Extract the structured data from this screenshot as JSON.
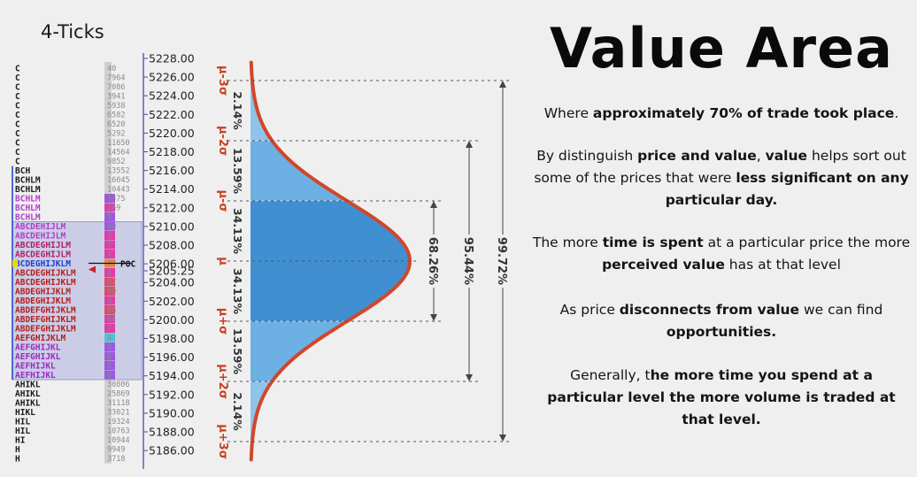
{
  "header": {
    "ticks_label": "4-Ticks",
    "title": "Value Area"
  },
  "paragraphs": [
    {
      "parts": [
        {
          "t": "Where ",
          "b": false
        },
        {
          "t": "approximately 70% of trade took place",
          "b": true
        },
        {
          "t": ".",
          "b": false
        }
      ]
    },
    {
      "parts": [
        {
          "t": "By distinguish ",
          "b": false
        },
        {
          "t": "price and value",
          "b": true
        },
        {
          "t": ", ",
          "b": false
        },
        {
          "t": "value",
          "b": true
        },
        {
          "t": " helps sort out some of the prices that were ",
          "b": false
        },
        {
          "t": "less significant on any particular day.",
          "b": true
        }
      ]
    },
    {
      "parts": [
        {
          "t": "The more ",
          "b": false
        },
        {
          "t": "time is spent",
          "b": true
        },
        {
          "t": " at a particular price the more ",
          "b": false
        },
        {
          "t": "perceived value",
          "b": true
        },
        {
          "t": " has at that level",
          "b": false
        }
      ]
    },
    {
      "parts": [
        {
          "t": "As price ",
          "b": false
        },
        {
          "t": "disconnects from value",
          "b": true
        },
        {
          "t": " we can find ",
          "b": false
        },
        {
          "t": "opportunities.",
          "b": true
        }
      ]
    },
    {
      "parts": [
        {
          "t": "Generally, t",
          "b": false
        },
        {
          "t": "he more time you spend at a particular level the more volume is traded at that level.",
          "b": true
        }
      ]
    }
  ],
  "colors": {
    "background": "#efefef",
    "curve": "#d2462a",
    "fill_outer": "#8ec3ea",
    "fill_mid": "#6db0e3",
    "fill_inner": "#3f8fd1",
    "value_area_box": "#b3b5e0",
    "poc_arrow": "#cc2222",
    "sigma_text": "#c8401f"
  },
  "tpo_profile": {
    "poc_label": "POC",
    "poc_price": "5205.25",
    "rows": [
      {
        "letters": "C",
        "color": "#1c1c1c",
        "volume": "40",
        "bar_color": "#c6c6c6"
      },
      {
        "letters": "C",
        "color": "#1c1c1c",
        "volume": "7964",
        "bar_color": "#c6c6c6"
      },
      {
        "letters": "C",
        "color": "#1c1c1c",
        "volume": "7086",
        "bar_color": "#c6c6c6"
      },
      {
        "letters": "C",
        "color": "#1c1c1c",
        "volume": "3941",
        "bar_color": "#c6c6c6"
      },
      {
        "letters": "C",
        "color": "#1c1c1c",
        "volume": "5938",
        "bar_color": "#c6c6c6"
      },
      {
        "letters": "C",
        "color": "#1c1c1c",
        "volume": "6582",
        "bar_color": "#c6c6c6"
      },
      {
        "letters": "C",
        "color": "#1c1c1c",
        "volume": "6520",
        "bar_color": "#c6c6c6"
      },
      {
        "letters": "C",
        "color": "#1c1c1c",
        "volume": "5292",
        "bar_color": "#c6c6c6"
      },
      {
        "letters": "C",
        "color": "#1c1c1c",
        "volume": "11650",
        "bar_color": "#c6c6c6"
      },
      {
        "letters": "C",
        "color": "#1c1c1c",
        "volume": "14564",
        "bar_color": "#c6c6c6"
      },
      {
        "letters": "C",
        "color": "#1c1c1c",
        "volume": "9852",
        "bar_color": "#c6c6c6"
      },
      {
        "letters": "BCH",
        "color": "#1c1c1c",
        "volume": "13552",
        "bar_color": "#c6c6c6"
      },
      {
        "letters": "BCHLM",
        "color": "#1c1c1c",
        "volume": "16045",
        "bar_color": "#c6c6c6"
      },
      {
        "letters": "BCHLM",
        "color": "#1c1c1c",
        "volume": "10443",
        "bar_color": "#c6c6c6"
      },
      {
        "letters": "BCHLM",
        "color": "#b33cc9",
        "volume": "3375",
        "bar_color": "#9b59e0"
      },
      {
        "letters": "BCHLM",
        "color": "#b33cc9",
        "volume": "269",
        "bar_color": "#e03ca8"
      },
      {
        "letters": "BCHLM",
        "color": "#b33cc9",
        "volume": "5",
        "bar_color": "#9b59e0"
      },
      {
        "letters": "ABCDEHIJLM",
        "color": "#b33cc9",
        "volume": "40",
        "bar_color": "#9b59e0"
      },
      {
        "letters": "ABCDEHIJLM",
        "color": "#b33cc9",
        "volume": "3",
        "bar_color": "#e03ca8"
      },
      {
        "letters": "ABCDEGHIJLM",
        "color": "#b0206a",
        "volume": "7",
        "bar_color": "#e03ca8"
      },
      {
        "letters": "ABCDEGHIJLM",
        "color": "#b0206a",
        "volume": "7",
        "bar_color": "#e03ca8"
      },
      {
        "letters": "BCDEGHIJKLM",
        "color": "#1a3fd0",
        "volume": "37",
        "bar_color": "#f08a3c"
      },
      {
        "letters": "ABCDEGHIJKLM",
        "color": "#b51f1f",
        "volume": "4",
        "bar_color": "#e03ca8"
      },
      {
        "letters": "ABCDEGHIJKLM",
        "color": "#b51f1f",
        "volume": "87",
        "bar_color": "#e04a6a"
      },
      {
        "letters": "ABDEGHIJKLM",
        "color": "#b51f1f",
        "volume": "90",
        "bar_color": "#e04a6a"
      },
      {
        "letters": "ABDEGHIJKLM",
        "color": "#b51f1f",
        "volume": "4",
        "bar_color": "#e03ca8"
      },
      {
        "letters": "ABDEFGHIJKLM",
        "color": "#b51f1f",
        "volume": "86",
        "bar_color": "#e04a6a"
      },
      {
        "letters": "ABDEFGHIJKLM",
        "color": "#b51f1f",
        "volume": "64",
        "bar_color": "#e03ca8"
      },
      {
        "letters": "ABDEFGHIJKLM",
        "color": "#b51f1f",
        "volume": "7",
        "bar_color": "#e03ca8"
      },
      {
        "letters": "AEFGHIJKLM",
        "color": "#b51f1f",
        "volume": "4",
        "bar_color": "#4fc3d6"
      },
      {
        "letters": "AEFGHIJKL",
        "color": "#9a2ac0",
        "volume": "3",
        "bar_color": "#9b59e0"
      },
      {
        "letters": "AEFGHIJKL",
        "color": "#9a2ac0",
        "volume": "6",
        "bar_color": "#9b59e0"
      },
      {
        "letters": "AEFHIJKL",
        "color": "#9a2ac0",
        "volume": "5",
        "bar_color": "#9b59e0"
      },
      {
        "letters": "AEFHIJKL",
        "color": "#9a2ac0",
        "volume": "0",
        "bar_color": "#9b59e0"
      },
      {
        "letters": "AHIKL",
        "color": "#1c1c1c",
        "volume": "30806",
        "bar_color": "#c6c6c6"
      },
      {
        "letters": "AHIKL",
        "color": "#1c1c1c",
        "volume": "25869",
        "bar_color": "#c6c6c6"
      },
      {
        "letters": "AHIKL",
        "color": "#1c1c1c",
        "volume": "31118",
        "bar_color": "#c6c6c6"
      },
      {
        "letters": "HIKL",
        "color": "#1c1c1c",
        "volume": "33021",
        "bar_color": "#c6c6c6"
      },
      {
        "letters": "HIL",
        "color": "#1c1c1c",
        "volume": "19324",
        "bar_color": "#c6c6c6"
      },
      {
        "letters": "HIL",
        "color": "#1c1c1c",
        "volume": "10763",
        "bar_color": "#c6c6c6"
      },
      {
        "letters": "HI",
        "color": "#1c1c1c",
        "volume": "10944",
        "bar_color": "#c6c6c6"
      },
      {
        "letters": "H",
        "color": "#1c1c1c",
        "volume": "9949",
        "bar_color": "#c6c6c6"
      },
      {
        "letters": "H",
        "color": "#1c1c1c",
        "volume": "3718",
        "bar_color": "#c6c6c6"
      }
    ]
  },
  "chart_data": {
    "type": "area",
    "price_axis": {
      "ticks": [
        "5228.00",
        "5226.00",
        "5224.00",
        "5222.00",
        "5220.00",
        "5218.00",
        "5216.00",
        "5214.00",
        "5212.00",
        "5210.00",
        "5208.00",
        "5206.00",
        "5205.25",
        "5204.00",
        "5202.00",
        "5200.00",
        "5198.00",
        "5196.00",
        "5194.00",
        "5192.00",
        "5190.00",
        "5188.00",
        "5186.00"
      ]
    },
    "distribution": "normal",
    "sigma_labels": [
      "μ-3σ",
      "μ-2σ",
      "μ-σ",
      "μ",
      "μ+σ",
      "μ+2σ",
      "μ+3σ"
    ],
    "bands": [
      {
        "from": -3,
        "to": -2,
        "percent": "2.14%"
      },
      {
        "from": -2,
        "to": -1,
        "percent": "13.59%"
      },
      {
        "from": -1,
        "to": 0,
        "percent": "34.13%"
      },
      {
        "from": 0,
        "to": 1,
        "percent": "34.13%"
      },
      {
        "from": 1,
        "to": 2,
        "percent": "13.59%"
      },
      {
        "from": 2,
        "to": 3,
        "percent": "2.14%"
      }
    ],
    "ranges": [
      {
        "sigma": 1,
        "percent": "68.26%"
      },
      {
        "sigma": 2,
        "percent": "95.44%"
      },
      {
        "sigma": 3,
        "percent": "99.72%"
      }
    ]
  }
}
